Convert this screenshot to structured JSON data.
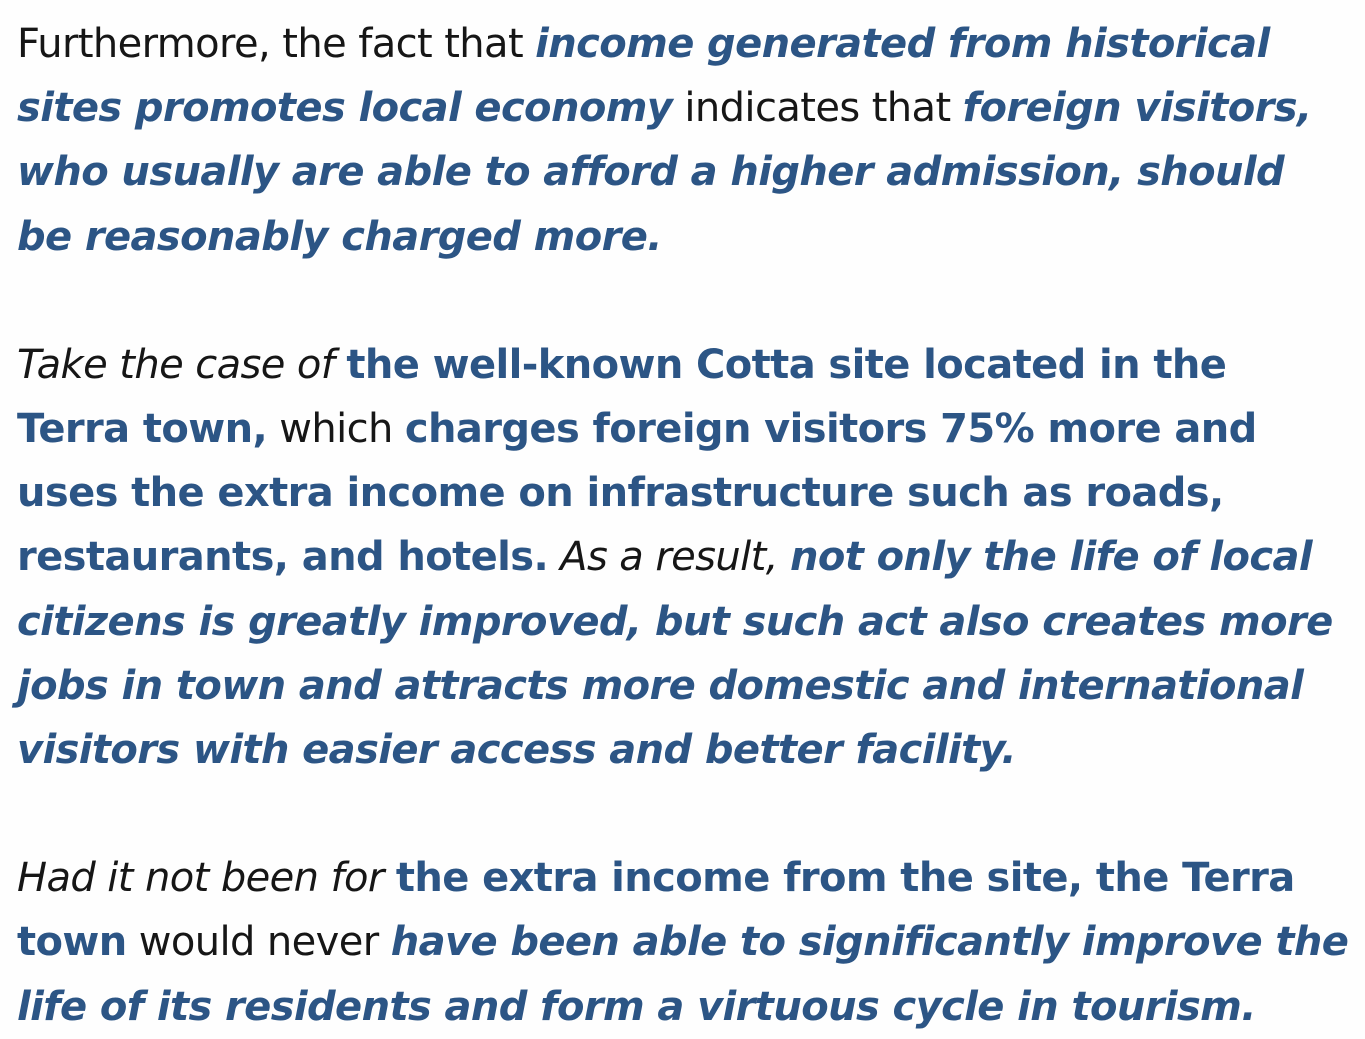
{
  "colors": {
    "text": "#161616",
    "highlight": "#2c5585",
    "background": "#fefefe"
  },
  "paragraphs": [
    {
      "segments": [
        {
          "text": "Furthermore, the fact that ",
          "style": "plain-upright"
        },
        {
          "text": "income generated from historical sites promotes local economy",
          "style": "hl-italic"
        },
        {
          "text": " indicates that ",
          "style": "plain-upright"
        },
        {
          "text": "foreign visitors, who usually are able to afford a higher admission, should be reasonably charged more.",
          "style": "hl-italic"
        }
      ]
    },
    {
      "segments": [
        {
          "text": "Take the case of ",
          "style": "plain-italic"
        },
        {
          "text": "the well-known Cotta site located in the Terra town,",
          "style": "hl-upright"
        },
        {
          "text": " which ",
          "style": "plain-upright"
        },
        {
          "text": "charges foreign visitors 75% more and uses the extra income on infrastructure such as roads, restaurants, and hotels.",
          "style": "hl-upright"
        },
        {
          "text": " As a result, ",
          "style": "plain-italic"
        },
        {
          "text": "not only the life of local citizens is greatly improved, but such act also creates more jobs in town and attracts more domestic and international visitors with easier access and better facility.",
          "style": "hl-italic"
        }
      ]
    },
    {
      "segments": [
        {
          "text": "Had it not been for ",
          "style": "plain-italic"
        },
        {
          "text": "the extra income from the site, the Terra town",
          "style": "hl-upright"
        },
        {
          "text": " would never ",
          "style": "plain-upright"
        },
        {
          "text": "have been able to significantly improve the life of its residents and form a virtuous cycle in tourism.",
          "style": "hl-italic"
        }
      ]
    }
  ]
}
